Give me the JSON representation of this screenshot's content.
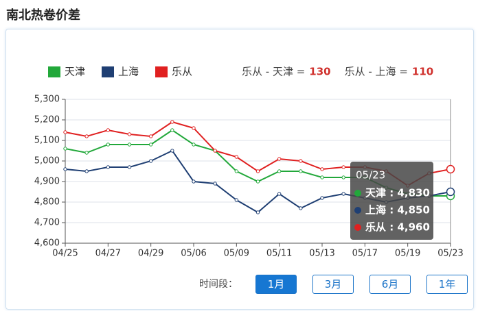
{
  "header": {
    "title": "南北热卷价差"
  },
  "chart_data": {
    "type": "line",
    "categories": [
      "04/25",
      null,
      "04/27",
      null,
      "04/29",
      null,
      "05/06",
      null,
      "05/09",
      null,
      "05/11",
      null,
      "05/13",
      null,
      "05/17",
      null,
      "05/19",
      null,
      "05/23"
    ],
    "series": [
      {
        "name": "天津",
        "color": "#22a83a",
        "values": [
          5060,
          5040,
          5080,
          5080,
          5080,
          5150,
          5080,
          5050,
          4950,
          4900,
          4950,
          4950,
          4920,
          4920,
          4920,
          4870,
          4840,
          4830,
          4830
        ]
      },
      {
        "name": "上海",
        "color": "#1f3f73",
        "values": [
          4960,
          4950,
          4970,
          4970,
          5000,
          5050,
          4900,
          4890,
          4810,
          4750,
          4840,
          4770,
          4820,
          4840,
          4820,
          4800,
          4820,
          4830,
          4850
        ]
      },
      {
        "name": "乐从",
        "color": "#e02020",
        "values": [
          5140,
          5120,
          5150,
          5130,
          5120,
          5190,
          5160,
          5050,
          5020,
          4950,
          5010,
          5000,
          4960,
          4970,
          4970,
          4950,
          4880,
          4940,
          4960
        ]
      }
    ],
    "ylim": [
      4600,
      5300
    ],
    "yticks": [
      {
        "value": 4600,
        "label": "4,600"
      },
      {
        "value": 4700,
        "label": "4,700"
      },
      {
        "value": 4800,
        "label": "4,800"
      },
      {
        "value": 4900,
        "label": "4,900"
      },
      {
        "value": 5000,
        "label": "5,000"
      },
      {
        "value": 5100,
        "label": "5,100"
      },
      {
        "value": 5200,
        "label": "5,200"
      },
      {
        "value": 5300,
        "label": "5,300"
      }
    ],
    "grid": true,
    "spreads": [
      {
        "label": "乐从 - 天津 =",
        "value": 130
      },
      {
        "label": "乐从 - 上海 =",
        "value": 110
      }
    ],
    "tooltip": {
      "title": "05/23",
      "rows": [
        {
          "text": "天津 : 4,830",
          "value": 4830
        },
        {
          "text": "上海 : 4,850",
          "value": 4850
        },
        {
          "text": "乐从 : 4,960",
          "value": 4960
        }
      ]
    }
  },
  "controls": {
    "label": "时间段：",
    "buttons": [
      "1月",
      "3月",
      "6月",
      "1年"
    ]
  }
}
